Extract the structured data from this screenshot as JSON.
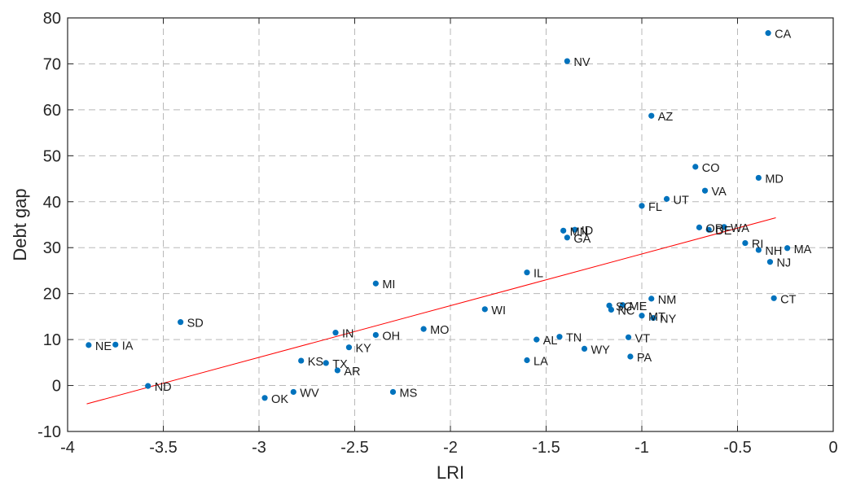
{
  "chart_data": {
    "type": "scatter",
    "title": "",
    "xlabel": "LRI",
    "ylabel": "Debt gap",
    "xlim": [
      -4,
      0
    ],
    "ylim": [
      -10,
      80
    ],
    "xticks": [
      -4,
      -3.5,
      -3,
      -2.5,
      -2,
      -1.5,
      -1,
      -0.5,
      0
    ],
    "xtick_labels": [
      "-4",
      "-3.5",
      "-3",
      "-2.5",
      "-2",
      "-1.5",
      "-1",
      "-0.5",
      "0"
    ],
    "yticks": [
      -10,
      0,
      10,
      20,
      30,
      40,
      50,
      60,
      70,
      80
    ],
    "ytick_labels": [
      "-10",
      "0",
      "10",
      "20",
      "30",
      "40",
      "50",
      "60",
      "70",
      "80"
    ],
    "grid": true,
    "legend": "none",
    "colors": {
      "points": "#0072BD",
      "fit_line": "#FF0000",
      "grid": "#b8b8b8",
      "axes": "#262626"
    },
    "points": [
      {
        "label": "CA",
        "x": -0.34,
        "y": 76.7
      },
      {
        "label": "NV",
        "x": -1.39,
        "y": 70.6
      },
      {
        "label": "AZ",
        "x": -0.95,
        "y": 58.7
      },
      {
        "label": "CO",
        "x": -0.72,
        "y": 47.6
      },
      {
        "label": "MD",
        "x": -0.39,
        "y": 45.2
      },
      {
        "label": "VA",
        "x": -0.67,
        "y": 42.4
      },
      {
        "label": "UT",
        "x": -0.87,
        "y": 40.6
      },
      {
        "label": "FL",
        "x": -1.0,
        "y": 39.1
      },
      {
        "label": "OR",
        "x": -0.7,
        "y": 34.4
      },
      {
        "label": "DE",
        "x": -0.65,
        "y": 33.9
      },
      {
        "label": "WA",
        "x": -0.57,
        "y": 34.5
      },
      {
        "label": "MN",
        "x": -1.41,
        "y": 33.7
      },
      {
        "label": "ID",
        "x": -1.35,
        "y": 33.9
      },
      {
        "label": "GA",
        "x": -1.39,
        "y": 32.2
      },
      {
        "label": "RI",
        "x": -0.46,
        "y": 31.0
      },
      {
        "label": "NH",
        "x": -0.39,
        "y": 29.5
      },
      {
        "label": "MA",
        "x": -0.24,
        "y": 29.9
      },
      {
        "label": "NJ",
        "x": -0.33,
        "y": 26.9
      },
      {
        "label": "IL",
        "x": -1.6,
        "y": 24.6
      },
      {
        "label": "MI",
        "x": -2.39,
        "y": 22.2
      },
      {
        "label": "CT",
        "x": -0.31,
        "y": 19.0
      },
      {
        "label": "NM",
        "x": -0.95,
        "y": 18.9
      },
      {
        "label": "SC",
        "x": -1.17,
        "y": 17.4
      },
      {
        "label": "ME",
        "x": -1.1,
        "y": 17.5
      },
      {
        "label": "NC",
        "x": -1.16,
        "y": 16.5
      },
      {
        "label": "MT",
        "x": -1.0,
        "y": 15.2
      },
      {
        "label": "NY",
        "x": -0.94,
        "y": 14.7
      },
      {
        "label": "WI",
        "x": -1.82,
        "y": 16.6
      },
      {
        "label": "SD",
        "x": -3.41,
        "y": 13.8
      },
      {
        "label": "MO",
        "x": -2.14,
        "y": 12.3
      },
      {
        "label": "IN",
        "x": -2.6,
        "y": 11.5
      },
      {
        "label": "OH",
        "x": -2.39,
        "y": 11.0
      },
      {
        "label": "TN",
        "x": -1.43,
        "y": 10.6
      },
      {
        "label": "VT",
        "x": -1.07,
        "y": 10.5
      },
      {
        "label": "AL",
        "x": -1.55,
        "y": 10.0
      },
      {
        "label": "NE",
        "x": -3.89,
        "y": 8.8
      },
      {
        "label": "IA",
        "x": -3.75,
        "y": 8.9
      },
      {
        "label": "KY",
        "x": -2.53,
        "y": 8.3
      },
      {
        "label": "WY",
        "x": -1.3,
        "y": 8.0
      },
      {
        "label": "PA",
        "x": -1.06,
        "y": 6.3
      },
      {
        "label": "LA",
        "x": -1.6,
        "y": 5.5
      },
      {
        "label": "KS",
        "x": -2.78,
        "y": 5.4
      },
      {
        "label": "TX",
        "x": -2.65,
        "y": 4.9
      },
      {
        "label": "AR",
        "x": -2.59,
        "y": 3.3
      },
      {
        "label": "ND",
        "x": -3.58,
        "y": -0.1
      },
      {
        "label": "WV",
        "x": -2.82,
        "y": -1.4
      },
      {
        "label": "MS",
        "x": -2.3,
        "y": -1.4
      },
      {
        "label": "OK",
        "x": -2.97,
        "y": -2.7
      }
    ],
    "fit_line": {
      "x": [
        -3.9,
        -0.3
      ],
      "y": [
        -4.0,
        36.5
      ]
    }
  }
}
